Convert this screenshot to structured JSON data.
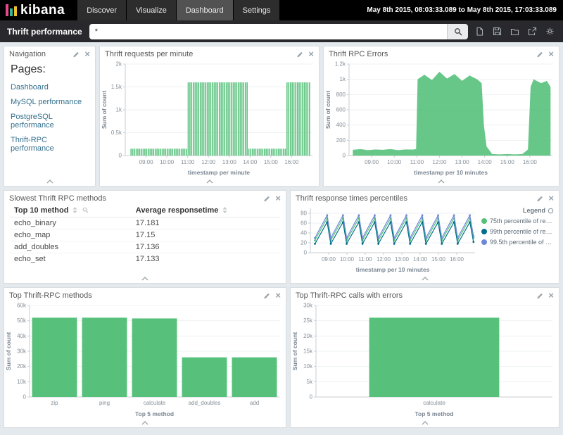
{
  "header": {
    "logo": "kibana",
    "nav": [
      {
        "label": "Discover",
        "active": false
      },
      {
        "label": "Visualize",
        "active": false
      },
      {
        "label": "Dashboard",
        "active": true
      },
      {
        "label": "Settings",
        "active": false
      }
    ],
    "time_range": "May 8th 2015, 08:03:33.089 to May 8th 2015, 17:03:33.089"
  },
  "toolbar": {
    "dashboard_title": "Thrift performance",
    "query_value": "*",
    "icons": [
      "new-dashboard",
      "save-dashboard",
      "load-saved-dashboard",
      "share-dashboard",
      "dashboard-settings"
    ]
  },
  "panels": {
    "navigation": {
      "title": "Navigation",
      "heading": "Pages:",
      "links": [
        "Dashboard",
        "MySQL performance",
        "PostgreSQL performance",
        "Thrift-RPC performance"
      ]
    }
  },
  "chart_data": [
    {
      "id": "requests",
      "type": "bar",
      "title": "Thrift requests per minute",
      "xlabel": "timestamp per minute",
      "ylabel": "Sum of count",
      "color": "#57c17b",
      "x_origin_label": "08:00",
      "x_domain_minutes": [
        0,
        540
      ],
      "x_tick_minutes": [
        60,
        120,
        180,
        240,
        300,
        360,
        420,
        480
      ],
      "x_tick_labels": [
        "09:00",
        "10:00",
        "11:00",
        "12:00",
        "13:00",
        "14:00",
        "15:00",
        "16:00"
      ],
      "ylim": [
        0,
        2000
      ],
      "y_ticks": [
        {
          "v": 0,
          "label": "0"
        },
        {
          "v": 500,
          "label": "0.5k"
        },
        {
          "v": 1000,
          "label": "1k"
        },
        {
          "v": 1500,
          "label": "1.5k"
        },
        {
          "v": 2000,
          "label": "2k"
        }
      ],
      "bar_interval_minutes": 5,
      "segments": [
        {
          "from_minute": 15,
          "to_minute": 180,
          "value": 150
        },
        {
          "from_minute": 180,
          "to_minute": 355,
          "value": 1600
        },
        {
          "from_minute": 355,
          "to_minute": 465,
          "value": 150
        },
        {
          "from_minute": 465,
          "to_minute": 535,
          "value": 1600
        }
      ]
    },
    {
      "id": "errors",
      "type": "area",
      "title": "Thrift RPC Errors",
      "xlabel": "timestamp per 10 minutes",
      "ylabel": "Sum of count",
      "color": "#57c17b",
      "x_origin_label": "08:00",
      "x_domain_minutes": [
        0,
        540
      ],
      "x_tick_minutes": [
        60,
        120,
        180,
        240,
        300,
        360,
        420,
        480
      ],
      "x_tick_labels": [
        "09:00",
        "10:00",
        "11:00",
        "12:00",
        "13:00",
        "14:00",
        "15:00",
        "16:00"
      ],
      "ylim": [
        0,
        1200
      ],
      "y_ticks": [
        {
          "v": 0,
          "label": "0"
        },
        {
          "v": 200,
          "label": "200"
        },
        {
          "v": 400,
          "label": "400"
        },
        {
          "v": 600,
          "label": "600"
        },
        {
          "v": 800,
          "label": "800"
        },
        {
          "v": 1000,
          "label": "1k"
        },
        {
          "v": 1200,
          "label": "1.2k"
        }
      ],
      "x": [
        10,
        30,
        50,
        70,
        90,
        110,
        130,
        150,
        170,
        178,
        182,
        200,
        220,
        240,
        260,
        280,
        300,
        320,
        340,
        352,
        358,
        365,
        380,
        400,
        420,
        440,
        460,
        475,
        482,
        490,
        510,
        525,
        535
      ],
      "y": [
        75,
        85,
        70,
        80,
        75,
        85,
        70,
        80,
        78,
        85,
        1000,
        1060,
        990,
        1100,
        1010,
        1070,
        980,
        1050,
        1000,
        950,
        400,
        120,
        20,
        15,
        20,
        15,
        20,
        80,
        900,
        1000,
        950,
        980,
        900
      ]
    },
    {
      "id": "slowest",
      "type": "table",
      "title": "Slowest Thrift RPC methods",
      "columns": [
        "Top 10 method",
        "Average responsetime"
      ],
      "rows": [
        [
          "echo_binary",
          "17.181"
        ],
        [
          "echo_map",
          "17.15"
        ],
        [
          "add_doubles",
          "17.136"
        ],
        [
          "echo_set",
          "17.133"
        ]
      ]
    },
    {
      "id": "percentiles",
      "type": "line",
      "title": "Thrift response times percentiles",
      "xlabel": "timestamp per 10 minutes",
      "ylabel": "",
      "legend_title": "Legend",
      "legend_position": "right",
      "x_origin_label": "08:00",
      "x_domain_minutes": [
        0,
        540
      ],
      "x_tick_minutes": [
        60,
        120,
        180,
        240,
        300,
        360,
        420,
        480
      ],
      "x_tick_labels": [
        "09:00",
        "10:00",
        "11:00",
        "12:00",
        "13:00",
        "14:00",
        "15:00",
        "16:00"
      ],
      "ylim": [
        0,
        90
      ],
      "y_ticks": [
        {
          "v": 0,
          "label": "0"
        },
        {
          "v": 20,
          "label": "20"
        },
        {
          "v": 40,
          "label": "40"
        },
        {
          "v": 60,
          "label": "60"
        },
        {
          "v": 80,
          "label": "80"
        }
      ],
      "x": [
        15,
        55,
        67,
        107,
        119,
        159,
        171,
        211,
        223,
        263,
        275,
        315,
        327,
        367,
        379,
        419,
        431,
        471,
        483,
        523,
        535
      ],
      "series": [
        {
          "name": "75th percentile of resp...",
          "color": "#57c17b",
          "y": [
            25,
            70,
            25,
            70,
            25,
            70,
            25,
            70,
            25,
            70,
            25,
            70,
            25,
            70,
            25,
            70,
            25,
            70,
            25,
            70,
            30
          ]
        },
        {
          "name": "99th percentile of resp...",
          "color": "#006e8a",
          "y": [
            18,
            62,
            18,
            62,
            18,
            62,
            18,
            62,
            18,
            62,
            18,
            62,
            18,
            62,
            18,
            62,
            18,
            62,
            18,
            62,
            22
          ]
        },
        {
          "name": "99.5th percentile of re...",
          "color": "#6f87d8",
          "y": [
            30,
            76,
            30,
            76,
            30,
            76,
            30,
            76,
            30,
            76,
            30,
            76,
            30,
            76,
            30,
            76,
            30,
            76,
            30,
            76,
            34
          ]
        }
      ]
    },
    {
      "id": "top_methods",
      "type": "bar",
      "title": "Top Thrift-RPC methods",
      "xlabel": "Top 5 method",
      "ylabel": "Sum of count",
      "color": "#57c17b",
      "categories": [
        "zip",
        "ping",
        "calculate",
        "add_doubles",
        "add"
      ],
      "values": [
        52000,
        52000,
        51500,
        26000,
        26000
      ],
      "ylim": [
        0,
        60000
      ],
      "y_ticks": [
        {
          "v": 0,
          "label": "0"
        },
        {
          "v": 10000,
          "label": "10k"
        },
        {
          "v": 20000,
          "label": "20k"
        },
        {
          "v": 30000,
          "label": "30k"
        },
        {
          "v": 40000,
          "label": "40k"
        },
        {
          "v": 50000,
          "label": "50k"
        },
        {
          "v": 60000,
          "label": "60k"
        }
      ]
    },
    {
      "id": "top_errors",
      "type": "bar",
      "title": "Top Thrift-RPC calls with errors",
      "xlabel": "Top 5 method",
      "ylabel": "Sum of count",
      "color": "#57c17b",
      "categories": [
        "calculate"
      ],
      "values": [
        26000
      ],
      "ylim": [
        0,
        30000
      ],
      "y_ticks": [
        {
          "v": 0,
          "label": "0"
        },
        {
          "v": 5000,
          "label": "5k"
        },
        {
          "v": 10000,
          "label": "10k"
        },
        {
          "v": 15000,
          "label": "15k"
        },
        {
          "v": 20000,
          "label": "20k"
        },
        {
          "v": 25000,
          "label": "25k"
        },
        {
          "v": 30000,
          "label": "30k"
        }
      ]
    }
  ]
}
